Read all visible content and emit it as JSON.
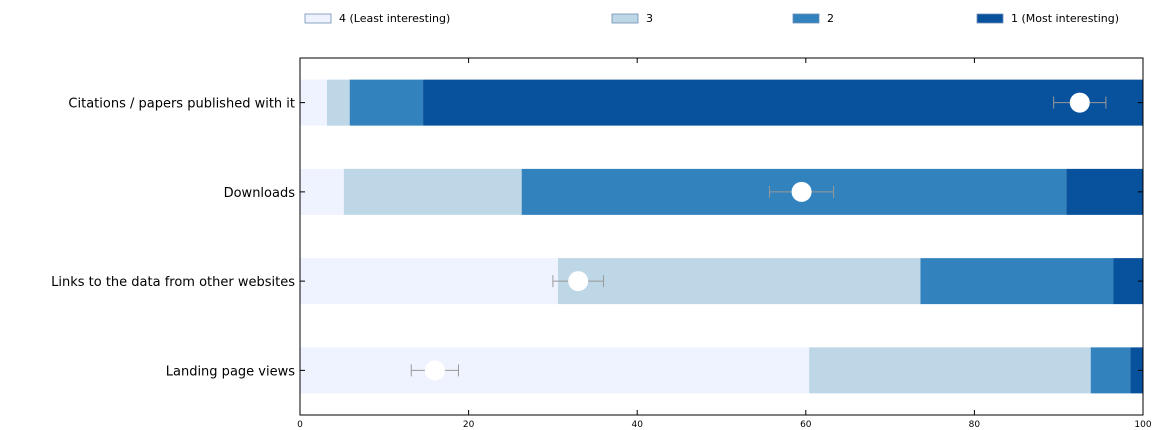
{
  "chart_data": {
    "type": "bar",
    "orientation": "horizontal",
    "stacked": true,
    "categories": [
      "Citations / papers published with it",
      "Downloads",
      "Links to the data from other websites",
      "Landing page views"
    ],
    "series": [
      {
        "name": "4 (Least interesting)",
        "color": "#eff3ff",
        "values": [
          3.2,
          5.2,
          30.6,
          60.4
        ]
      },
      {
        "name": "3",
        "color": "#bdd7e7",
        "values": [
          2.7,
          21.1,
          43.0,
          33.4
        ]
      },
      {
        "name": "2",
        "color": "#3182bd",
        "values": [
          8.7,
          64.6,
          22.9,
          4.7
        ]
      },
      {
        "name": "1 (Most interesting)",
        "color": "#08519c",
        "values": [
          85.4,
          9.1,
          3.5,
          1.5
        ]
      }
    ],
    "markers": [
      {
        "value": 92.5,
        "err": 3.1
      },
      {
        "value": 59.5,
        "err": 3.8
      },
      {
        "value": 33.0,
        "err": 3.0
      },
      {
        "value": 16.0,
        "err": 2.8
      }
    ],
    "xlim": [
      0,
      100
    ],
    "xticks": [
      0,
      20,
      40,
      60,
      80,
      100
    ],
    "legend_position": "top",
    "grid": false
  }
}
